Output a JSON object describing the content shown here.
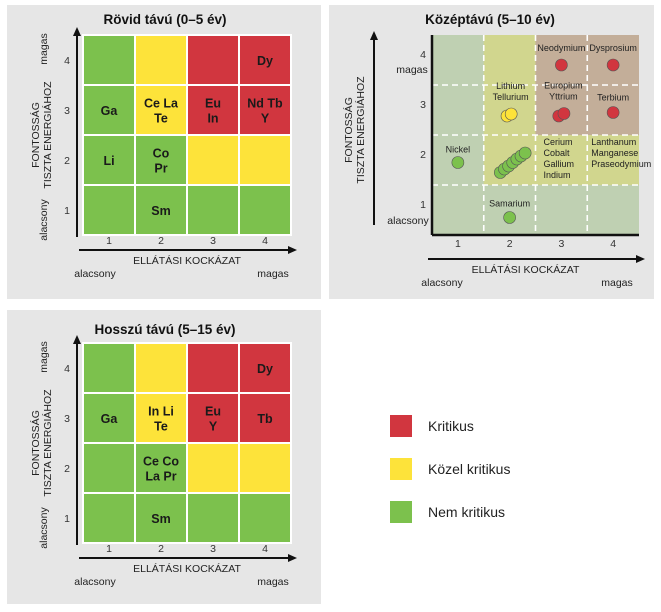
{
  "colors": {
    "critical": "#d1363f",
    "near_critical": "#fde33a",
    "not_critical": "#7cc14d",
    "panel_bg": "#e6e6e6",
    "mid_bg": "#dcdcd4"
  },
  "chart_data": [
    {
      "type": "heatmap",
      "title": "Rövid távú (0–5 év)",
      "xlabel": "ELLÁTÁSI KOCKÁZAT",
      "x_low": "alacsony",
      "x_high": "magas",
      "ylabel_line1": "FONTOSSÁG",
      "ylabel_line2": "TISZTA ENERGIÁHOZ",
      "y_low": "alacsony",
      "y_high": "magas",
      "x_ticks": [
        "1",
        "2",
        "3",
        "4"
      ],
      "y_ticks": [
        "1",
        "2",
        "3",
        "4"
      ],
      "grid": [
        [
          "not_critical",
          "not_critical",
          "not_critical",
          "not_critical"
        ],
        [
          "not_critical",
          "not_critical",
          "near_critical",
          "near_critical"
        ],
        [
          "not_critical",
          "near_critical",
          "critical",
          "critical"
        ],
        [
          "not_critical",
          "near_critical",
          "critical",
          "critical"
        ]
      ],
      "labels": [
        {
          "x": 2,
          "y": 1,
          "text": [
            "Sm"
          ]
        },
        {
          "x": 1,
          "y": 2,
          "text": [
            "Li"
          ]
        },
        {
          "x": 2,
          "y": 2,
          "text": [
            "Co",
            "Pr"
          ]
        },
        {
          "x": 1,
          "y": 3,
          "text": [
            "Ga"
          ]
        },
        {
          "x": 2,
          "y": 3,
          "text": [
            "Ce La",
            "Te"
          ]
        },
        {
          "x": 3,
          "y": 3,
          "text": [
            "Eu",
            "In"
          ]
        },
        {
          "x": 4,
          "y": 3,
          "text": [
            "Nd Tb",
            "Y"
          ]
        },
        {
          "x": 4,
          "y": 4,
          "text": [
            "Dy"
          ]
        }
      ]
    },
    {
      "type": "scatter",
      "title": "Középtávú (5–10 év)",
      "xlabel": "ELLÁTÁSI KOCKÁZAT",
      "x_low": "alacsony",
      "x_high": "magas",
      "ylabel_line1": "FONTOSSÁG",
      "ylabel_line2": "TISZTA ENERGIÁHOZ",
      "y_low": "alacsony",
      "y_high": "magas",
      "x_ticks": [
        "1",
        "2",
        "3",
        "4"
      ],
      "y_ticks": [
        "1",
        "2",
        "3",
        "4"
      ],
      "xlim": [
        0.5,
        4.5
      ],
      "ylim": [
        0.5,
        4.5
      ],
      "points": [
        {
          "name": "Nickel",
          "x": 1.0,
          "y": 1.95,
          "status": "not_critical"
        },
        {
          "name": "Samarium",
          "x": 2.0,
          "y": 0.85,
          "status": "not_critical"
        },
        {
          "name": "Lithium",
          "x": 1.95,
          "y": 2.88,
          "status": "near_critical"
        },
        {
          "name": "Tellurium",
          "x": 2.03,
          "y": 2.92,
          "status": "near_critical"
        },
        {
          "name": "Cerium",
          "x": 1.82,
          "y": 1.75,
          "status": "not_critical"
        },
        {
          "name": "Cobalt",
          "x": 1.9,
          "y": 1.82,
          "status": "not_critical"
        },
        {
          "name": "Gallium",
          "x": 1.98,
          "y": 1.88,
          "status": "not_critical"
        },
        {
          "name": "Indium",
          "x": 2.06,
          "y": 1.95,
          "status": "not_critical"
        },
        {
          "name": "Lanthanum",
          "x": 2.14,
          "y": 2.02,
          "status": "not_critical"
        },
        {
          "name": "Manganese",
          "x": 2.22,
          "y": 2.08,
          "status": "not_critical"
        },
        {
          "name": "Praseodymium",
          "x": 2.3,
          "y": 2.14,
          "status": "not_critical"
        },
        {
          "name": "Europium",
          "x": 2.95,
          "y": 2.88,
          "status": "critical"
        },
        {
          "name": "Yttrium",
          "x": 3.05,
          "y": 2.93,
          "status": "critical"
        },
        {
          "name": "Terbium",
          "x": 4.0,
          "y": 2.95,
          "status": "critical"
        },
        {
          "name": "Neodymium",
          "x": 3.0,
          "y": 3.9,
          "status": "critical"
        },
        {
          "name": "Dysprosium",
          "x": 4.0,
          "y": 3.9,
          "status": "critical"
        }
      ],
      "annotations": [
        {
          "lines": [
            "Nickel"
          ]
        },
        {
          "lines": [
            "Samarium"
          ]
        },
        {
          "lines": [
            "Lithium",
            "Tellurium"
          ]
        },
        {
          "lines": [
            "Cerium",
            "Cobalt",
            "Gallium",
            "Indium"
          ]
        },
        {
          "lines": [
            "Lanthanum",
            "Manganese",
            "Praseodymium"
          ]
        },
        {
          "lines": [
            "Europium",
            "Yttrium"
          ]
        },
        {
          "lines": [
            "Terbium"
          ]
        },
        {
          "lines": [
            "Neodymium"
          ]
        },
        {
          "lines": [
            "Dysprosium"
          ]
        }
      ]
    },
    {
      "type": "heatmap",
      "title": "Hosszú távú (5–15 év)",
      "xlabel": "ELLÁTÁSI KOCKÁZAT",
      "x_low": "alacsony",
      "x_high": "magas",
      "ylabel_line1": "FONTOSSÁG",
      "ylabel_line2": "TISZTA ENERGIÁHOZ",
      "y_low": "alacsony",
      "y_high": "magas",
      "x_ticks": [
        "1",
        "2",
        "3",
        "4"
      ],
      "y_ticks": [
        "1",
        "2",
        "3",
        "4"
      ],
      "grid": [
        [
          "not_critical",
          "not_critical",
          "not_critical",
          "not_critical"
        ],
        [
          "not_critical",
          "not_critical",
          "near_critical",
          "near_critical"
        ],
        [
          "not_critical",
          "near_critical",
          "critical",
          "critical"
        ],
        [
          "not_critical",
          "near_critical",
          "critical",
          "critical"
        ]
      ],
      "labels": [
        {
          "x": 2,
          "y": 1,
          "text": [
            "Sm"
          ]
        },
        {
          "x": 2,
          "y": 2,
          "text": [
            "Ce Co",
            "La Pr"
          ]
        },
        {
          "x": 1,
          "y": 3,
          "text": [
            "Ga"
          ]
        },
        {
          "x": 2,
          "y": 3,
          "text": [
            "In Li",
            "Te"
          ]
        },
        {
          "x": 3,
          "y": 3,
          "text": [
            "Eu",
            "Y"
          ]
        },
        {
          "x": 4,
          "y": 3,
          "text": [
            "Tb"
          ]
        },
        {
          "x": 4,
          "y": 4,
          "text": [
            "Dy"
          ]
        }
      ]
    }
  ],
  "legend": [
    {
      "key": "critical",
      "label": "Kritikus"
    },
    {
      "key": "near_critical",
      "label": "Közel kritikus"
    },
    {
      "key": "not_critical",
      "label": "Nem kritikus"
    }
  ]
}
